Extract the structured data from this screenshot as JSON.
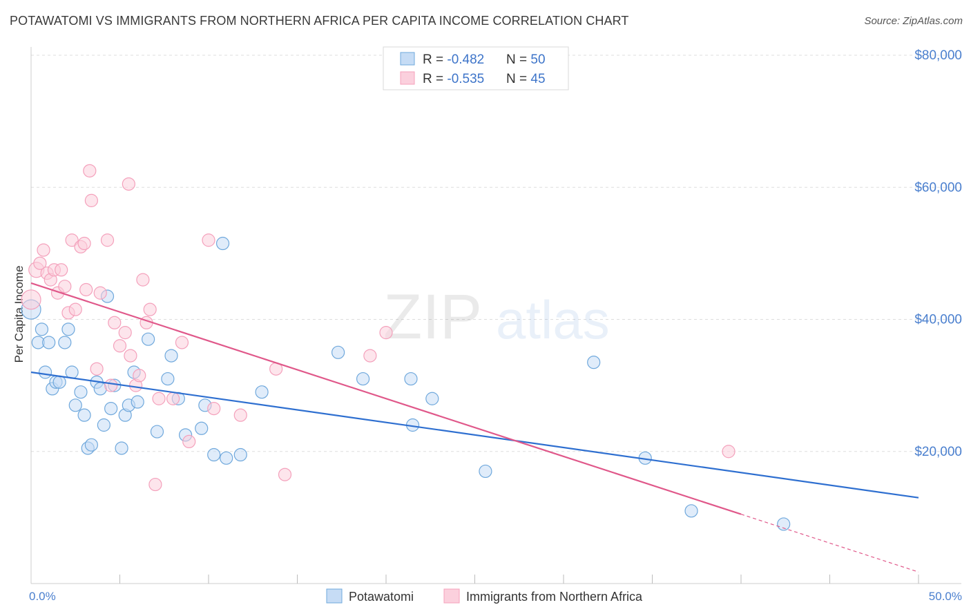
{
  "chart_data": {
    "type": "scatter",
    "title": "POTAWATOMI VS IMMIGRANTS FROM NORTHERN AFRICA PER CAPITA INCOME CORRELATION CHART",
    "source": "Source: ZipAtlas.com",
    "xlabel": "",
    "ylabel": "Per Capita Income",
    "xlim": [
      0,
      50
    ],
    "ylim": [
      0,
      80000
    ],
    "x_tick_labels": [
      "0.0%",
      "50.0%"
    ],
    "y_ticks": [
      20000,
      40000,
      60000,
      80000
    ],
    "y_tick_labels": [
      "$20,000",
      "$40,000",
      "$60,000",
      "$80,000"
    ],
    "watermark": "ZIPatlas",
    "series": [
      {
        "name": "Potawatomi",
        "color": "#6fa8dc",
        "line_color": "#2e6fd0",
        "R": "-0.482",
        "N": "50",
        "trend": {
          "x0": 0,
          "y0": 32000,
          "x1": 50,
          "y1": 13000
        },
        "points": [
          {
            "x": 0.0,
            "y": 41500,
            "s": 14
          },
          {
            "x": 0.4,
            "y": 36500,
            "s": 9
          },
          {
            "x": 0.6,
            "y": 38500,
            "s": 9
          },
          {
            "x": 0.8,
            "y": 32000,
            "s": 9
          },
          {
            "x": 1.0,
            "y": 36500,
            "s": 9
          },
          {
            "x": 1.2,
            "y": 29500,
            "s": 9
          },
          {
            "x": 1.4,
            "y": 30500,
            "s": 9
          },
          {
            "x": 1.6,
            "y": 30500,
            "s": 9
          },
          {
            "x": 1.9,
            "y": 36500,
            "s": 9
          },
          {
            "x": 2.1,
            "y": 38500,
            "s": 9
          },
          {
            "x": 2.3,
            "y": 32000,
            "s": 9
          },
          {
            "x": 2.5,
            "y": 27000,
            "s": 9
          },
          {
            "x": 2.8,
            "y": 29000,
            "s": 9
          },
          {
            "x": 3.0,
            "y": 25500,
            "s": 9
          },
          {
            "x": 3.2,
            "y": 20500,
            "s": 9
          },
          {
            "x": 3.4,
            "y": 21000,
            "s": 9
          },
          {
            "x": 3.7,
            "y": 30500,
            "s": 9
          },
          {
            "x": 3.9,
            "y": 29500,
            "s": 9
          },
          {
            "x": 4.1,
            "y": 24000,
            "s": 9
          },
          {
            "x": 4.3,
            "y": 43500,
            "s": 9
          },
          {
            "x": 4.5,
            "y": 26500,
            "s": 9
          },
          {
            "x": 4.7,
            "y": 30000,
            "s": 9
          },
          {
            "x": 5.1,
            "y": 20500,
            "s": 9
          },
          {
            "x": 5.3,
            "y": 25500,
            "s": 9
          },
          {
            "x": 5.5,
            "y": 27000,
            "s": 9
          },
          {
            "x": 5.8,
            "y": 32000,
            "s": 9
          },
          {
            "x": 6.0,
            "y": 27500,
            "s": 9
          },
          {
            "x": 6.6,
            "y": 37000,
            "s": 9
          },
          {
            "x": 7.1,
            "y": 23000,
            "s": 9
          },
          {
            "x": 7.7,
            "y": 31000,
            "s": 9
          },
          {
            "x": 7.9,
            "y": 34500,
            "s": 9
          },
          {
            "x": 8.3,
            "y": 28000,
            "s": 9
          },
          {
            "x": 8.7,
            "y": 22500,
            "s": 9
          },
          {
            "x": 9.6,
            "y": 23500,
            "s": 9
          },
          {
            "x": 9.8,
            "y": 27000,
            "s": 9
          },
          {
            "x": 10.3,
            "y": 19500,
            "s": 9
          },
          {
            "x": 10.8,
            "y": 51500,
            "s": 9
          },
          {
            "x": 11.0,
            "y": 19000,
            "s": 9
          },
          {
            "x": 11.8,
            "y": 19500,
            "s": 9
          },
          {
            "x": 13.0,
            "y": 29000,
            "s": 9
          },
          {
            "x": 17.3,
            "y": 35000,
            "s": 9
          },
          {
            "x": 18.7,
            "y": 31000,
            "s": 9
          },
          {
            "x": 21.4,
            "y": 31000,
            "s": 9
          },
          {
            "x": 21.5,
            "y": 24000,
            "s": 9
          },
          {
            "x": 22.6,
            "y": 28000,
            "s": 9
          },
          {
            "x": 25.6,
            "y": 17000,
            "s": 9
          },
          {
            "x": 31.7,
            "y": 33500,
            "s": 9
          },
          {
            "x": 34.6,
            "y": 19000,
            "s": 9
          },
          {
            "x": 37.2,
            "y": 11000,
            "s": 9
          },
          {
            "x": 42.4,
            "y": 9000,
            "s": 9
          }
        ]
      },
      {
        "name": "Immigrants from Northern Africa",
        "color": "#f4a0bb",
        "line_color": "#e0588a",
        "R": "-0.535",
        "N": "45",
        "trend": {
          "x0": 0,
          "y0": 45500,
          "x1": 40,
          "y1": 10500
        },
        "trend_ext": {
          "x0": 40,
          "y0": 10500,
          "x1": 50,
          "y1": 1750
        },
        "points": [
          {
            "x": 0.0,
            "y": 43000,
            "s": 14
          },
          {
            "x": 0.3,
            "y": 47500,
            "s": 11
          },
          {
            "x": 0.5,
            "y": 48500,
            "s": 9
          },
          {
            "x": 0.7,
            "y": 50500,
            "s": 9
          },
          {
            "x": 0.9,
            "y": 47000,
            "s": 9
          },
          {
            "x": 1.1,
            "y": 46000,
            "s": 9
          },
          {
            "x": 1.3,
            "y": 47500,
            "s": 9
          },
          {
            "x": 1.5,
            "y": 44000,
            "s": 9
          },
          {
            "x": 1.7,
            "y": 47500,
            "s": 9
          },
          {
            "x": 1.9,
            "y": 45000,
            "s": 9
          },
          {
            "x": 2.1,
            "y": 41000,
            "s": 9
          },
          {
            "x": 2.3,
            "y": 52000,
            "s": 9
          },
          {
            "x": 2.5,
            "y": 41500,
            "s": 9
          },
          {
            "x": 2.8,
            "y": 51000,
            "s": 9
          },
          {
            "x": 3.0,
            "y": 51500,
            "s": 9
          },
          {
            "x": 3.1,
            "y": 44500,
            "s": 9
          },
          {
            "x": 3.3,
            "y": 62500,
            "s": 9
          },
          {
            "x": 3.4,
            "y": 58000,
            "s": 9
          },
          {
            "x": 3.7,
            "y": 32500,
            "s": 9
          },
          {
            "x": 3.9,
            "y": 44000,
            "s": 9
          },
          {
            "x": 4.3,
            "y": 52000,
            "s": 9
          },
          {
            "x": 4.5,
            "y": 30000,
            "s": 9
          },
          {
            "x": 4.7,
            "y": 39500,
            "s": 9
          },
          {
            "x": 5.0,
            "y": 36000,
            "s": 9
          },
          {
            "x": 5.3,
            "y": 38000,
            "s": 9
          },
          {
            "x": 5.5,
            "y": 60500,
            "s": 9
          },
          {
            "x": 5.6,
            "y": 34500,
            "s": 9
          },
          {
            "x": 5.9,
            "y": 30000,
            "s": 9
          },
          {
            "x": 6.1,
            "y": 31500,
            "s": 9
          },
          {
            "x": 6.3,
            "y": 46000,
            "s": 9
          },
          {
            "x": 6.5,
            "y": 39500,
            "s": 9
          },
          {
            "x": 6.7,
            "y": 41500,
            "s": 9
          },
          {
            "x": 7.0,
            "y": 15000,
            "s": 9
          },
          {
            "x": 7.2,
            "y": 28000,
            "s": 9
          },
          {
            "x": 8.0,
            "y": 28000,
            "s": 9
          },
          {
            "x": 8.5,
            "y": 36500,
            "s": 9
          },
          {
            "x": 8.9,
            "y": 21500,
            "s": 9
          },
          {
            "x": 10.0,
            "y": 52000,
            "s": 9
          },
          {
            "x": 10.3,
            "y": 26500,
            "s": 9
          },
          {
            "x": 11.8,
            "y": 25500,
            "s": 9
          },
          {
            "x": 13.8,
            "y": 32500,
            "s": 9
          },
          {
            "x": 14.3,
            "y": 16500,
            "s": 9
          },
          {
            "x": 19.1,
            "y": 34500,
            "s": 9
          },
          {
            "x": 20.0,
            "y": 38000,
            "s": 9
          },
          {
            "x": 39.3,
            "y": 20000,
            "s": 9
          }
        ]
      }
    ]
  }
}
